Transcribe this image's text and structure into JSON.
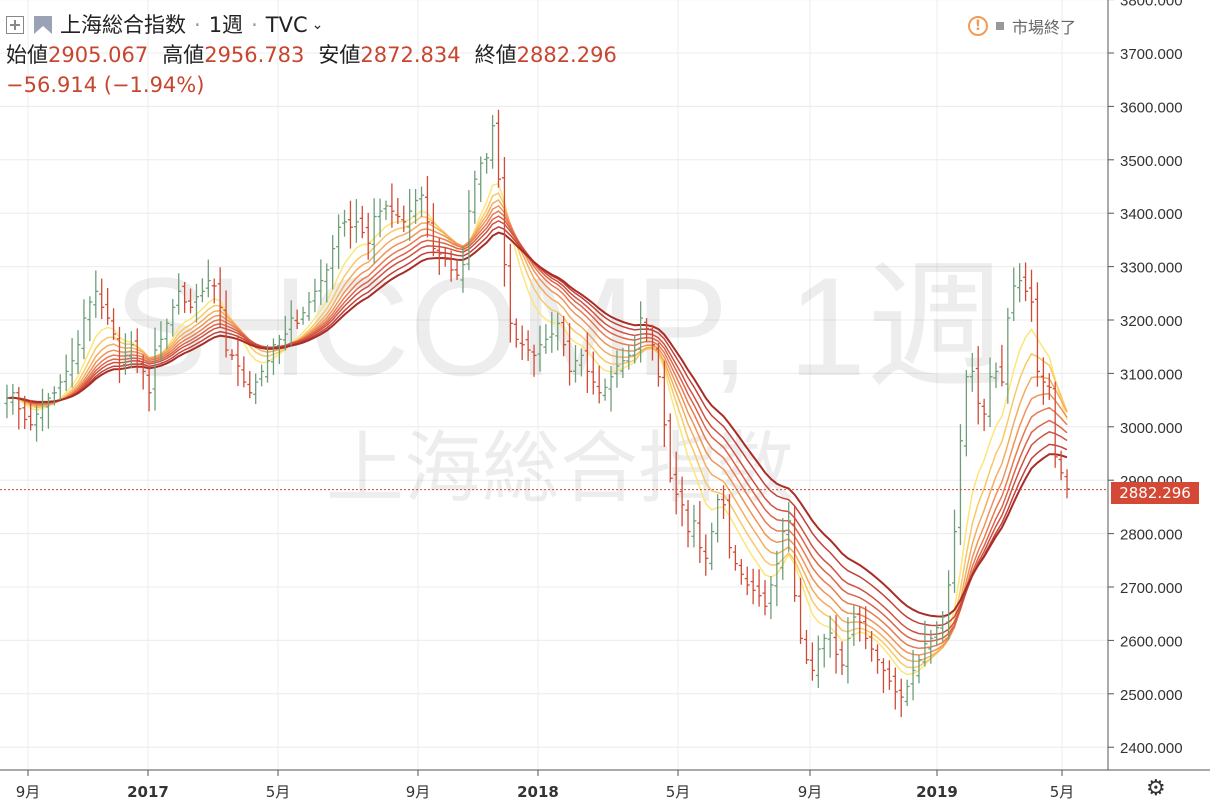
{
  "header": {
    "symbol_name": "上海総合指数",
    "interval": "1週",
    "exchange": "TVC",
    "open_label": "始値",
    "open_value": "2905.067",
    "high_label": "高値",
    "high_value": "2956.783",
    "low_label": "安値",
    "low_value": "2872.834",
    "close_label": "終値",
    "close_value": "2882.296",
    "change": "−56.914 (−1.94%)"
  },
  "status": {
    "market": "市場終了"
  },
  "watermark": {
    "symbol": "SHCOMP, 1週",
    "name": "上海総合指数"
  },
  "price_tag": "2882.296",
  "colors": {
    "up": "#6e9e78",
    "down": "#d04a36",
    "ribbon": [
      "#fde57a",
      "#f8c868",
      "#f4ad5e",
      "#ef9358",
      "#e77a51",
      "#dc644a",
      "#cf5243",
      "#c3423b",
      "#a82d26"
    ]
  },
  "chart_data": {
    "type": "ohlc",
    "yaxis": {
      "range": [
        2360,
        3800
      ],
      "ticks": [
        "2400.000",
        "2500.000",
        "2600.000",
        "2700.000",
        "2800.000",
        "2900.000",
        "3000.000",
        "3100.000",
        "3200.000",
        "3300.000",
        "3400.000",
        "3500.000",
        "3600.000",
        "3700.000",
        "3800.000"
      ]
    },
    "xaxis": {
      "ticks": [
        "9月",
        "2017",
        "5月",
        "9月",
        "2018",
        "5月",
        "9月",
        "2019",
        "5月"
      ]
    },
    "last_price": 2882.296,
    "closes": [
      3050,
      3060,
      3030,
      3010,
      3000,
      3020,
      3040,
      3050,
      3060,
      3080,
      3100,
      3120,
      3150,
      3200,
      3230,
      3250,
      3220,
      3200,
      3170,
      3110,
      3130,
      3150,
      3120,
      3100,
      3060,
      3140,
      3160,
      3190,
      3220,
      3250,
      3230,
      3220,
      3240,
      3250,
      3270,
      3260,
      3220,
      3140,
      3130,
      3110,
      3080,
      3060,
      3080,
      3100,
      3120,
      3150,
      3160,
      3170,
      3200,
      3190,
      3210,
      3230,
      3250,
      3270,
      3290,
      3330,
      3370,
      3380,
      3370,
      3380,
      3360,
      3340,
      3390,
      3400,
      3410,
      3400,
      3390,
      3380,
      3400,
      3420,
      3430,
      3380,
      3330,
      3320,
      3310,
      3290,
      3280,
      3300,
      3400,
      3460,
      3490,
      3500,
      3560,
      3460,
      3300,
      3190,
      3160,
      3150,
      3140,
      3130,
      3150,
      3160,
      3170,
      3190,
      3150,
      3100,
      3120,
      3130,
      3100,
      3080,
      3060,
      3070,
      3090,
      3110,
      3120,
      3130,
      3140,
      3200,
      3180,
      3150,
      3090,
      3000,
      2900,
      2870,
      2850,
      2800,
      2820,
      2770,
      2750,
      2800,
      2860,
      2850,
      2770,
      2740,
      2720,
      2700,
      2690,
      2680,
      2660,
      2700,
      2740,
      2800,
      2820,
      2680,
      2600,
      2560,
      2540,
      2580,
      2600,
      2610,
      2570,
      2550,
      2600,
      2640,
      2630,
      2600,
      2580,
      2560,
      2540,
      2520,
      2500,
      2490,
      2510,
      2540,
      2560,
      2590,
      2600,
      2620,
      2640,
      2700,
      2800,
      2970,
      3090,
      3100,
      3040,
      3020,
      3090,
      3100,
      3080,
      3200,
      3260,
      3270,
      3250,
      3230,
      3100,
      3080,
      3070,
      2940,
      2910,
      2880
    ],
    "ma_periods": [
      8,
      11,
      14,
      17,
      20,
      23,
      26,
      30,
      34
    ]
  }
}
